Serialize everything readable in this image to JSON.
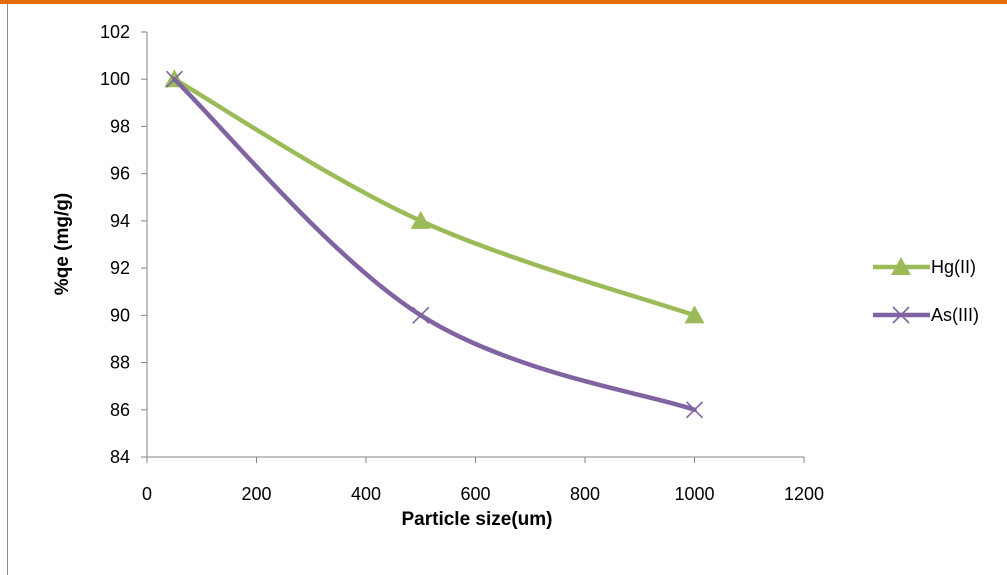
{
  "page": {
    "accent_color": "#e36c0a"
  },
  "chart_data": {
    "type": "line",
    "title": "",
    "xlabel": "Particle size(um)",
    "ylabel": "%qe (mg/g)",
    "xlim": [
      0,
      1200
    ],
    "ylim": [
      84,
      102
    ],
    "x_ticks": [
      "0",
      "200",
      "400",
      "600",
      "800",
      "1000",
      "1200"
    ],
    "y_ticks": [
      "84",
      "86",
      "88",
      "90",
      "92",
      "94",
      "96",
      "98",
      "100",
      "102"
    ],
    "grid": false,
    "smooth": true,
    "legend_position": "right",
    "series": [
      {
        "name": "Hg(II)",
        "x": [
          50,
          500,
          1000
        ],
        "y": [
          100,
          94,
          90
        ],
        "color": "#9bbb59",
        "marker": "triangle"
      },
      {
        "name": "As(III)",
        "x": [
          50,
          500,
          1000
        ],
        "y": [
          100,
          90,
          86
        ],
        "color": "#8064a2",
        "marker": "x"
      }
    ]
  }
}
